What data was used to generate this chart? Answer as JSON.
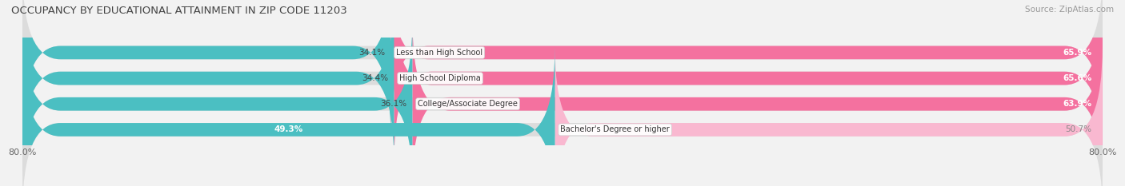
{
  "title": "OCCUPANCY BY EDUCATIONAL ATTAINMENT IN ZIP CODE 11203",
  "source": "Source: ZipAtlas.com",
  "categories": [
    "Less than High School",
    "High School Diploma",
    "College/Associate Degree",
    "Bachelor's Degree or higher"
  ],
  "owner_pct": [
    34.1,
    34.4,
    36.1,
    49.3
  ],
  "renter_pct": [
    65.9,
    65.6,
    63.9,
    50.7
  ],
  "owner_color": "#4bbfc2",
  "renter_color_bright": "#f4719f",
  "renter_color_light": "#f9b8d0",
  "axis_total": 80.0,
  "bar_height": 0.52,
  "background_color": "#f2f2f2",
  "bar_bg_color": "#dcdcdc",
  "title_fontsize": 9.5,
  "source_fontsize": 7.5,
  "label_fontsize": 7.5,
  "tick_fontsize": 8,
  "legend_fontsize": 8
}
